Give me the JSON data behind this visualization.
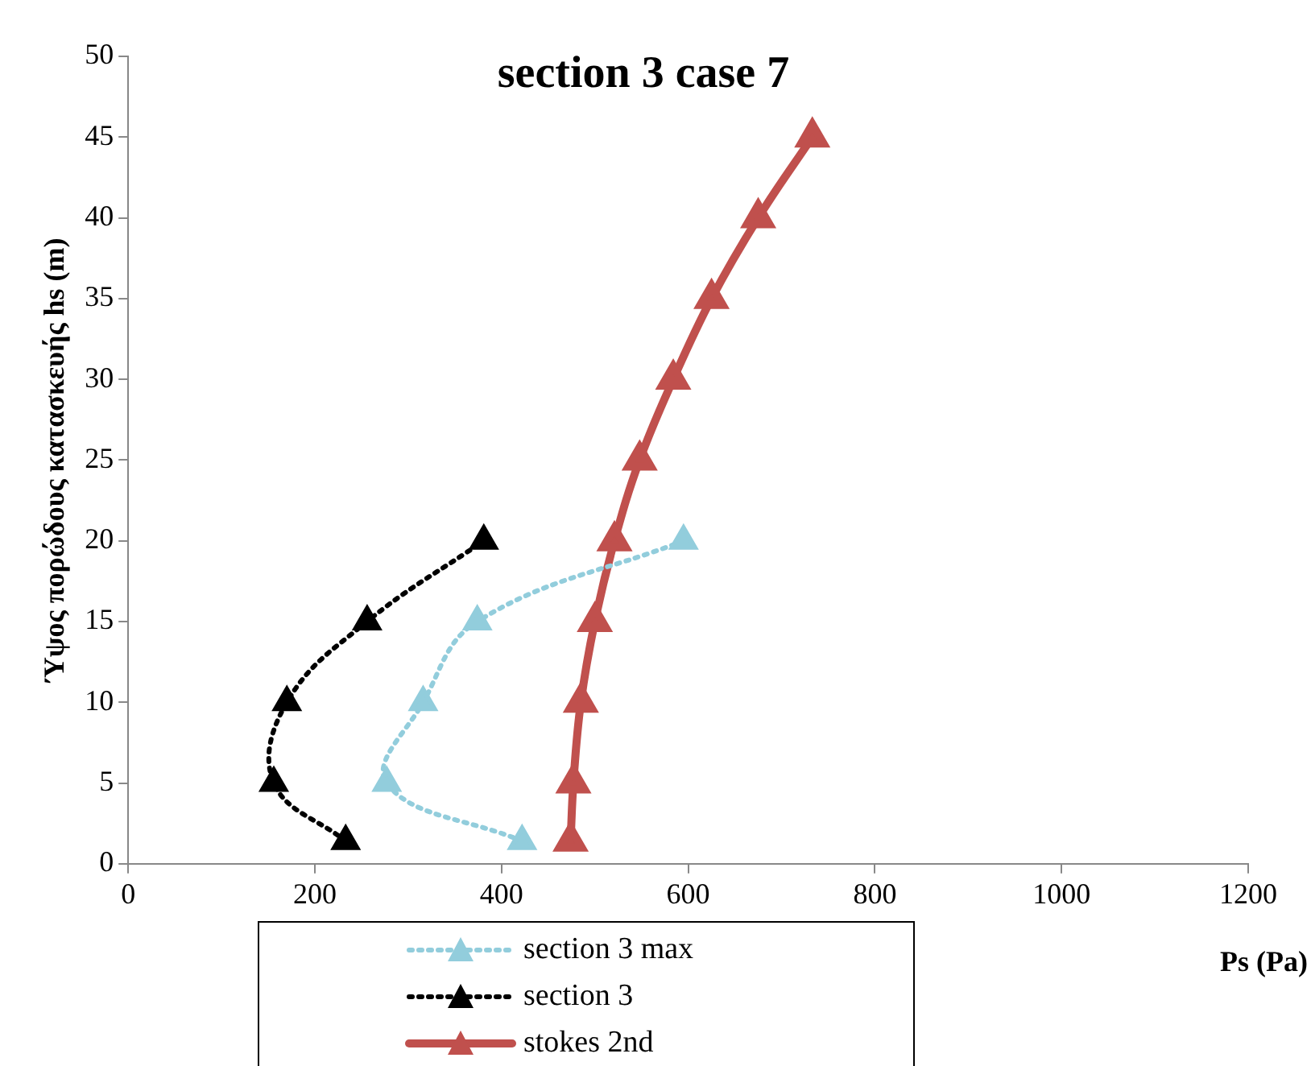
{
  "chart_data": {
    "type": "line",
    "title": "section 3 case 7",
    "xlabel": "Ps (Pa)",
    "ylabel": "Ύψος πoρώδους κατασκευής hs (m)",
    "xlim": [
      0,
      1200
    ],
    "xticks": [
      0,
      200,
      400,
      600,
      800,
      1000,
      1200
    ],
    "ylim": [
      0,
      50
    ],
    "yticks": [
      0,
      5,
      10,
      15,
      20,
      25,
      30,
      35,
      40,
      45,
      50
    ],
    "grid": false,
    "legend": "bottom",
    "marker": "triangle",
    "series": [
      {
        "name": "section 3 max",
        "color": "#92cddc",
        "line_style": "dotted",
        "x": [
          422,
          277,
          316,
          374,
          595
        ],
        "values": [
          1.4,
          5,
          10,
          15,
          20
        ]
      },
      {
        "name": "section 3",
        "color": "#000000",
        "line_style": "dotted",
        "x": [
          233,
          156,
          170,
          256,
          381
        ],
        "values": [
          1.4,
          5,
          10,
          15,
          20
        ]
      },
      {
        "name": "stokes 2nd",
        "color": "#c0504d",
        "line_style": "solid",
        "x": [
          474,
          477,
          485,
          500,
          521,
          548,
          584,
          625,
          675,
          733
        ],
        "values": [
          1.4,
          5,
          10,
          15,
          20,
          25,
          30,
          35,
          40,
          45
        ]
      }
    ]
  }
}
